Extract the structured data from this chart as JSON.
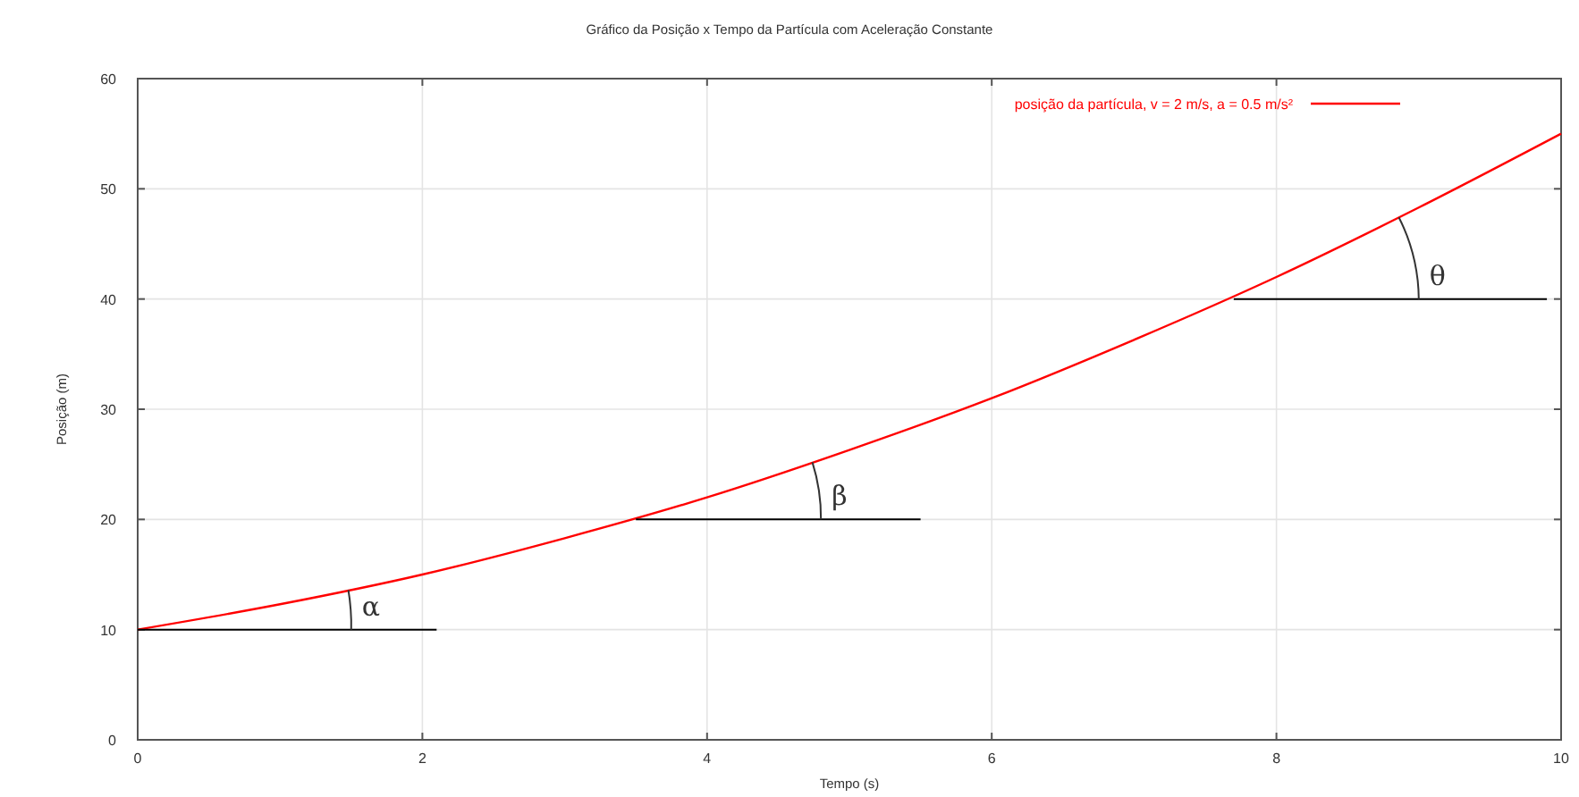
{
  "chart_data": {
    "type": "line",
    "title": "Gráfico da Posição x Tempo da Partícula com Aceleração Constante",
    "xlabel": "Tempo (s)",
    "ylabel": "Posição (m)",
    "xlim": [
      0,
      10
    ],
    "xticks": [
      0,
      2,
      4,
      6,
      8,
      10
    ],
    "ylim": [
      0,
      60
    ],
    "yticks": [
      0,
      10,
      20,
      30,
      40,
      50,
      60
    ],
    "grid": true,
    "legend": "top right",
    "series": [
      {
        "name": "posição da partícula, v = 2 m/s, a = 0.5 m/s²",
        "color": "#ff0000",
        "x": [
          0,
          1,
          2,
          3,
          4,
          5,
          6,
          7,
          8,
          9,
          10
        ],
        "values": [
          10,
          12.3,
          15,
          18.3,
          22,
          26.3,
          31,
          36.3,
          42,
          48.3,
          55
        ]
      },
      {
        "color": "#000000",
        "x": [
          0,
          2.1
        ],
        "values": [
          10,
          10
        ]
      },
      {
        "color": "#000000",
        "x": [
          3.5,
          5.5
        ],
        "values": [
          20,
          20
        ]
      },
      {
        "color": "#000000",
        "x": [
          7.7,
          9.9
        ],
        "values": [
          40,
          40
        ]
      }
    ],
    "annotations": [
      {
        "text": "α",
        "x": 1.5,
        "y": 10
      },
      {
        "text": "β",
        "x": 4.8,
        "y": 20
      },
      {
        "text": "θ",
        "x": 9,
        "y": 40
      }
    ]
  }
}
